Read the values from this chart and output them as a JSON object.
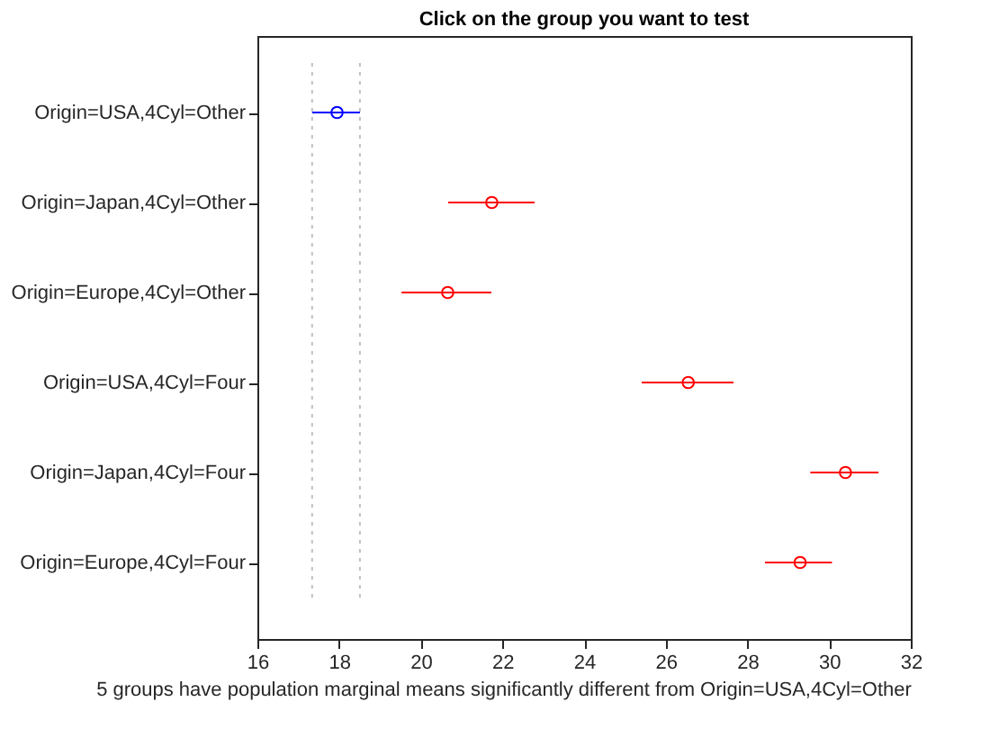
{
  "chart_data": {
    "type": "scatter",
    "orientation": "horizontal",
    "title": "Click on the group you want to test",
    "xlabel": "5 groups have population marginal means significantly different from Origin=USA,4Cyl=Other",
    "categories": [
      "Origin=USA,4Cyl=Other",
      "Origin=Japan,4Cyl=Other",
      "Origin=Europe,4Cyl=Other",
      "Origin=USA,4Cyl=Four",
      "Origin=Japan,4Cyl=Four",
      "Origin=Europe,4Cyl=Four"
    ],
    "values": [
      17.95,
      21.74,
      20.66,
      26.55,
      30.4,
      29.29
    ],
    "errors": [
      [
        17.34,
        18.51
      ],
      [
        20.67,
        22.79
      ],
      [
        19.53,
        21.73
      ],
      [
        25.41,
        27.66
      ],
      [
        29.54,
        31.21
      ],
      [
        28.43,
        30.07
      ]
    ],
    "colors": [
      "#0000ff",
      "#ff0000",
      "#ff0000",
      "#ff0000",
      "#ff0000",
      "#ff0000"
    ],
    "xlim": [
      16,
      32
    ],
    "xticks": [
      16,
      18,
      20,
      22,
      24,
      26,
      28,
      30,
      32
    ],
    "ref_lines": [
      {
        "axis": "x",
        "value": 17.34,
        "color": "#c0c0c0",
        "line_style": "dotted"
      },
      {
        "axis": "x",
        "value": 18.51,
        "color": "#c0c0c0",
        "line_style": "dotted"
      }
    ],
    "marker": "circle",
    "grid": false
  }
}
